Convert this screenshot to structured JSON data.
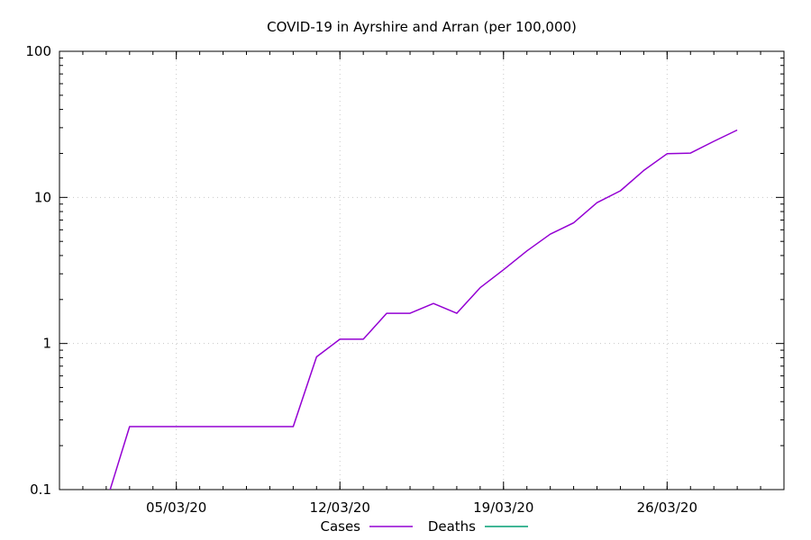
{
  "chart_data": {
    "type": "line",
    "title": "COVID-19 in Ayrshire and Arran (per 100,000)",
    "xlabel": "",
    "ylabel": "",
    "y_scale": "log",
    "ylim": [
      0.1,
      100
    ],
    "xlim": [
      "2020-02-29",
      "2020-03-31"
    ],
    "x_ticks": [
      {
        "date": "2020-03-05",
        "label": "05/03/20"
      },
      {
        "date": "2020-03-12",
        "label": "12/03/20"
      },
      {
        "date": "2020-03-19",
        "label": "19/03/20"
      },
      {
        "date": "2020-03-26",
        "label": "26/03/20"
      }
    ],
    "y_ticks": [
      {
        "value": 0.1,
        "label": "0.1"
      },
      {
        "value": 1,
        "label": "1"
      },
      {
        "value": 10,
        "label": "10"
      },
      {
        "value": 100,
        "label": "100"
      }
    ],
    "grid": true,
    "legend_position": "bottom-center",
    "series": [
      {
        "name": "Cases",
        "color": "#9400d3",
        "x": [
          "2020-03-02",
          "2020-03-03",
          "2020-03-04",
          "2020-03-05",
          "2020-03-06",
          "2020-03-07",
          "2020-03-08",
          "2020-03-09",
          "2020-03-10",
          "2020-03-11",
          "2020-03-12",
          "2020-03-13",
          "2020-03-14",
          "2020-03-15",
          "2020-03-16",
          "2020-03-17",
          "2020-03-18",
          "2020-03-19",
          "2020-03-20",
          "2020-03-21",
          "2020-03-22",
          "2020-03-23",
          "2020-03-24",
          "2020-03-25",
          "2020-03-26",
          "2020-03-27",
          "2020-03-28",
          "2020-03-29"
        ],
        "y": [
          0.082,
          0.27,
          0.27,
          0.27,
          0.27,
          0.27,
          0.27,
          0.27,
          0.27,
          0.81,
          1.07,
          1.07,
          1.61,
          1.61,
          1.88,
          1.61,
          2.41,
          3.2,
          4.3,
          5.6,
          6.7,
          9.2,
          11.1,
          15.3,
          19.9,
          20.1,
          24.2,
          28.9
        ]
      },
      {
        "name": "Deaths",
        "color": "#009e73",
        "x": [],
        "y": []
      }
    ]
  }
}
